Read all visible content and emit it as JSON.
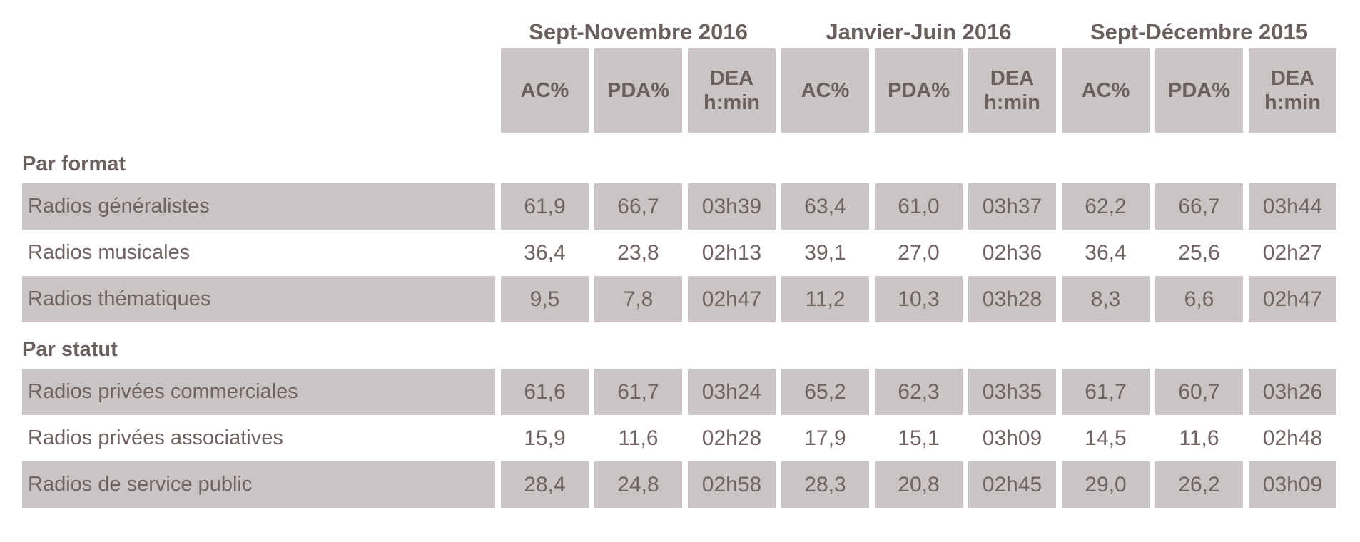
{
  "chart_data": {
    "type": "table",
    "period_groups": [
      "Sept-Novembre 2016",
      "Janvier-Juin 2016",
      "Sept-Décembre 2015"
    ],
    "sub_columns": [
      "AC%",
      "PDA%",
      "DEA h:min"
    ],
    "column_headers": [
      "AC%",
      "PDA%",
      "DEA\nh:min",
      "AC%",
      "PDA%",
      "DEA\nh:min",
      "AC%",
      "PDA%",
      "DEA\nh:min"
    ],
    "sections": [
      {
        "heading": "Par format",
        "rows": [
          {
            "label": "Radios généralistes",
            "shaded": true,
            "values": [
              "61,9",
              "66,7",
              "03h39",
              "63,4",
              "61,0",
              "03h37",
              "62,2",
              "66,7",
              "03h44"
            ]
          },
          {
            "label": "Radios musicales",
            "shaded": false,
            "values": [
              "36,4",
              "23,8",
              "02h13",
              "39,1",
              "27,0",
              "02h36",
              "36,4",
              "25,6",
              "02h27"
            ]
          },
          {
            "label": "Radios thématiques",
            "shaded": true,
            "values": [
              "9,5",
              "7,8",
              "02h47",
              "11,2",
              "10,3",
              "03h28",
              "8,3",
              "6,6",
              "02h47"
            ]
          }
        ]
      },
      {
        "heading": "Par statut",
        "rows": [
          {
            "label": "Radios privées commerciales",
            "shaded": true,
            "values": [
              "61,6",
              "61,7",
              "03h24",
              "65,2",
              "62,3",
              "03h35",
              "61,7",
              "60,7",
              "03h26"
            ]
          },
          {
            "label": "Radios privées associatives",
            "shaded": false,
            "values": [
              "15,9",
              "11,6",
              "02h28",
              "17,9",
              "15,1",
              "03h09",
              "14,5",
              "11,6",
              "02h48"
            ]
          },
          {
            "label": "Radios de service public",
            "shaded": true,
            "values": [
              "28,4",
              "24,8",
              "02h58",
              "28,3",
              "20,8",
              "02h45",
              "29,0",
              "26,2",
              "03h09"
            ]
          }
        ]
      }
    ],
    "layout": {
      "grid": false,
      "alternating_row_shading": true
    },
    "colors": {
      "shaded_bg": "#cbc4c4",
      "text": "#6f6461",
      "bold_text": "#6a605d",
      "background": "#ffffff"
    }
  }
}
